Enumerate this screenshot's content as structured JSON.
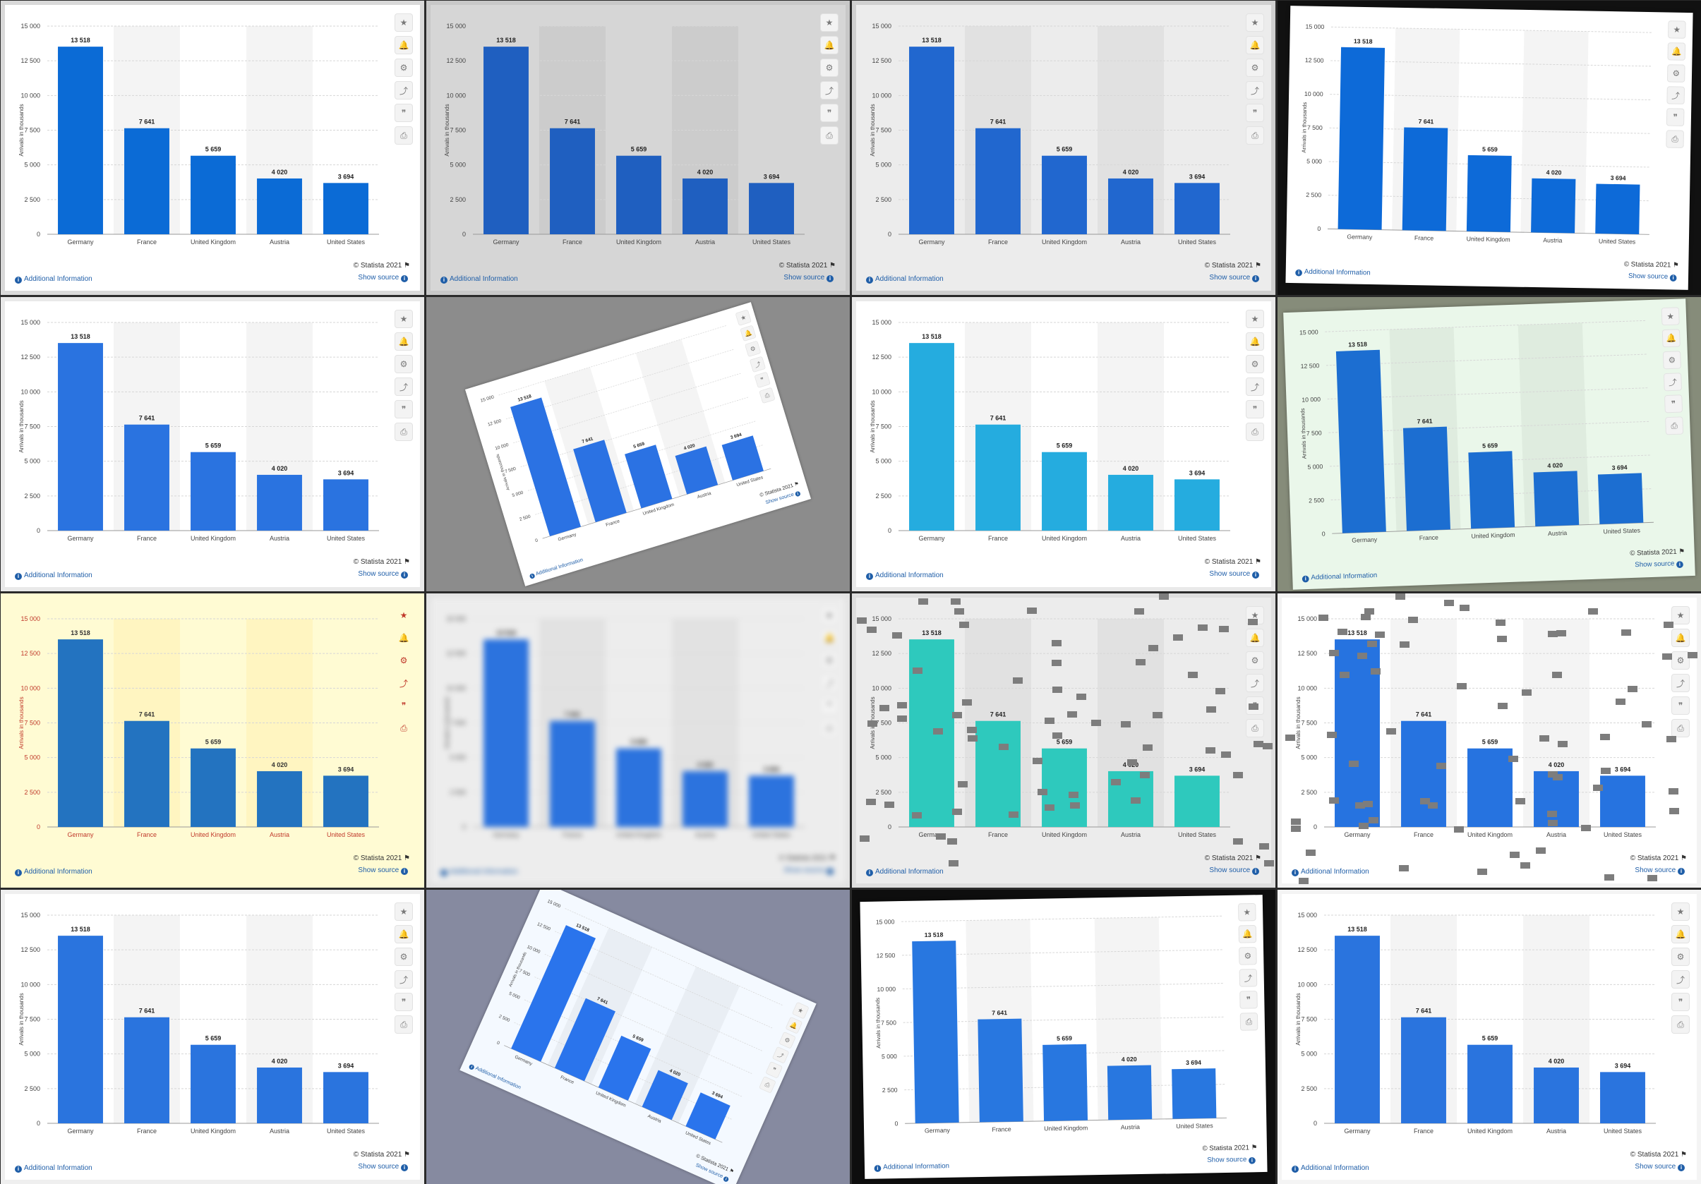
{
  "chart_data": {
    "type": "bar",
    "categories": [
      "Germany",
      "France",
      "United Kingdom",
      "Austria",
      "United States"
    ],
    "values": [
      13518,
      7641,
      5659,
      4020,
      3694
    ],
    "data_labels": [
      "13 518",
      "7 641",
      "5 659",
      "4 020",
      "3 694"
    ],
    "ylabel": "Arrivals in thousands",
    "yticks": [
      "0",
      "2 500",
      "5 000",
      "7 500",
      "10 000",
      "12 500",
      "15 000"
    ],
    "ylim": [
      0,
      15000
    ],
    "grid": true,
    "legend": "none"
  },
  "footer": {
    "additional_info": "Additional Information",
    "credit": "© Statista 2021",
    "show_source": "Show source"
  },
  "toolbar_icons": [
    "star-icon",
    "bell-icon",
    "gear-icon",
    "share-icon",
    "quote-icon",
    "print-icon"
  ],
  "toolbar_glyphs": [
    "★",
    "🔔",
    "⚙",
    "⤴",
    "❞",
    "⎙"
  ],
  "variants": [
    {
      "bar": "#0b6bd6",
      "page": "#ffffff",
      "bg": "#d9d9d9",
      "rotate": 0
    },
    {
      "bar": "#1f5fc0",
      "page": "#d6d6d6",
      "bg": "#c8c8c8",
      "rotate": 0
    },
    {
      "bar": "#2167cf",
      "page": "#ececec",
      "bg": "#d0d0d0",
      "rotate": 0
    },
    {
      "bar": "#0d6ad8",
      "page": "#ffffff",
      "bg": "#111111",
      "rotate": 1
    },
    {
      "bar": "#2a73e0",
      "page": "#ffffff",
      "bg": "#e9e9e9",
      "rotate": 0
    },
    {
      "bar": "#2b72e3",
      "page": "#ffffff",
      "bg": "#8c8c8c",
      "rotate": -17
    },
    {
      "bar": "#25acdf",
      "page": "#ffffff",
      "bg": "#e9e9e9",
      "rotate": 0
    },
    {
      "bar": "#1c6ed1",
      "page": "#eaf7ea",
      "bg": "#868c7a",
      "rotate": -2
    },
    {
      "bar": "#2373c0",
      "page": "#fffbd3",
      "bg": "#fffbd3",
      "rotate": 0,
      "warm": true
    },
    {
      "bar": "#2c73de",
      "page": "#ededed",
      "bg": "#e2e2e2",
      "rotate": 0,
      "blur": true
    },
    {
      "bar": "#2ec9bd",
      "page": "#ececec",
      "bg": "#dedede",
      "rotate": 0,
      "specks": true
    },
    {
      "bar": "#2673e0",
      "page": "#ffffff",
      "bg": "#f3f3f3",
      "rotate": 0,
      "specks": true
    },
    {
      "bar": "#2a74de",
      "page": "#ffffff",
      "bg": "#efefef",
      "rotate": 0
    },
    {
      "bar": "#2a74ec",
      "page": "#f4f9ff",
      "bg": "#868aa0",
      "rotate": 24
    },
    {
      "bar": "#2877e0",
      "page": "#ffffff",
      "bg": "#0e0e0e",
      "rotate": -1
    },
    {
      "bar": "#2a74de",
      "page": "#ffffff",
      "bg": "#f4f4f4",
      "rotate": 0
    }
  ]
}
